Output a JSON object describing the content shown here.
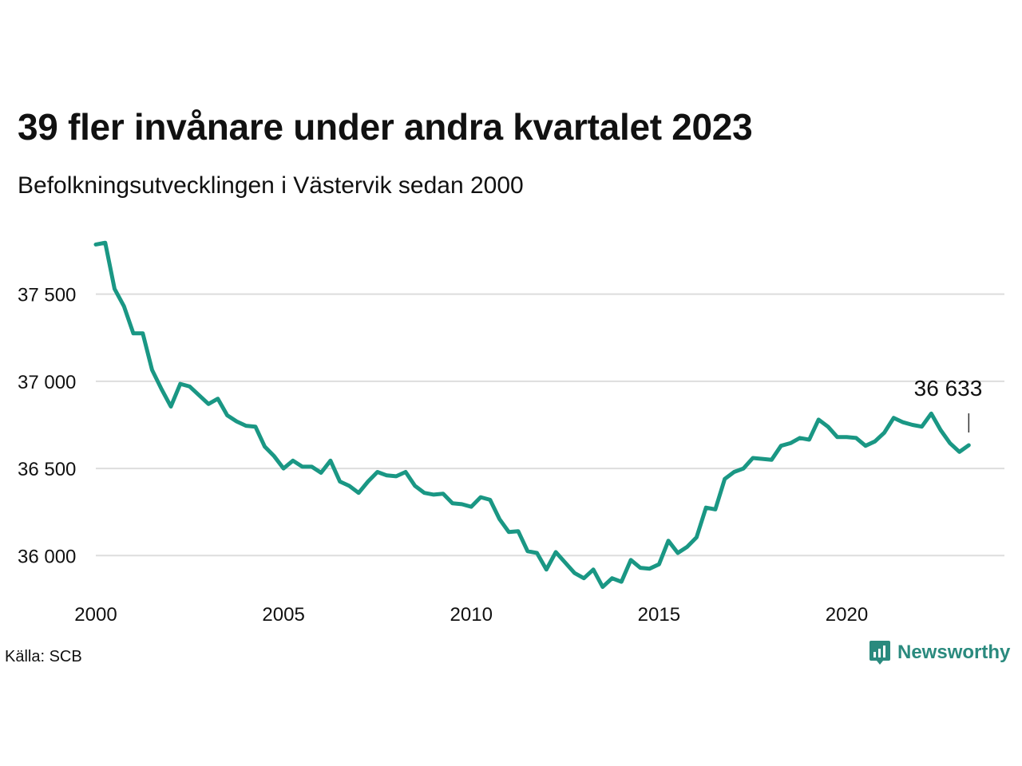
{
  "title": "39 fler invånare under andra kvartalet 2023",
  "subtitle": "Befolkningsutvecklingen i Västervik sedan 2000",
  "source": "Källa: SCB",
  "brand": {
    "name": "Newsworthy",
    "icon": "newsworthy-logo-icon",
    "color": "#2a8a7e"
  },
  "colors": {
    "line": "#1a9784",
    "grid": "#dddddd",
    "text": "#111111"
  },
  "chart_data": {
    "type": "line",
    "title": "39 fler invånare under andra kvartalet 2023",
    "subtitle": "Befolkningsutvecklingen i Västervik sedan 2000",
    "xlabel": "",
    "ylabel": "",
    "xlim": [
      2000,
      2024.2
    ],
    "ylim": [
      35800,
      37860
    ],
    "x_ticks": [
      {
        "value": 2000,
        "label": "2000"
      },
      {
        "value": 2005,
        "label": "2005"
      },
      {
        "value": 2010,
        "label": "2010"
      },
      {
        "value": 2015,
        "label": "2015"
      },
      {
        "value": 2020,
        "label": "2020"
      }
    ],
    "y_ticks": [
      {
        "value": 36000,
        "label": "36 000"
      },
      {
        "value": 36500,
        "label": "36 500"
      },
      {
        "value": 37000,
        "label": "37 000"
      },
      {
        "value": 37500,
        "label": "37 500"
      }
    ],
    "grid": true,
    "legend": "none",
    "annotation": {
      "x": 2023.25,
      "y": 36633,
      "label": "36 633"
    },
    "x": [
      2000,
      2000.25,
      2000.5,
      2000.75,
      2001,
      2001.25,
      2001.5,
      2001.75,
      2002,
      2002.25,
      2002.5,
      2002.75,
      2003,
      2003.25,
      2003.5,
      2003.75,
      2004,
      2004.25,
      2004.5,
      2004.75,
      2005,
      2005.25,
      2005.5,
      2005.75,
      2006,
      2006.25,
      2006.5,
      2006.75,
      2007,
      2007.25,
      2007.5,
      2007.75,
      2008,
      2008.25,
      2008.5,
      2008.75,
      2009,
      2009.25,
      2009.5,
      2009.75,
      2010,
      2010.25,
      2010.5,
      2010.75,
      2011,
      2011.25,
      2011.5,
      2011.75,
      2012,
      2012.25,
      2012.5,
      2012.75,
      2013,
      2013.25,
      2013.5,
      2013.75,
      2014,
      2014.25,
      2014.5,
      2014.75,
      2015,
      2015.25,
      2015.5,
      2015.75,
      2016,
      2016.25,
      2016.5,
      2016.75,
      2017,
      2017.25,
      2017.5,
      2017.75,
      2018,
      2018.25,
      2018.5,
      2018.75,
      2019,
      2019.25,
      2019.5,
      2019.75,
      2020,
      2020.25,
      2020.5,
      2020.75,
      2021,
      2021.25,
      2021.5,
      2021.75,
      2022,
      2022.25,
      2022.5,
      2022.75,
      2023,
      2023.25
    ],
    "series": [
      {
        "values": [
          37785,
          37795,
          37530,
          37430,
          37275,
          37275,
          37065,
          36955,
          36855,
          36985,
          36970,
          36920,
          36870,
          36900,
          36805,
          36770,
          36745,
          36740,
          36625,
          36570,
          36500,
          36545,
          36510,
          36510,
          36475,
          36545,
          36425,
          36400,
          36360,
          36425,
          36480,
          36460,
          36455,
          36480,
          36400,
          36360,
          36350,
          36355,
          36300,
          36295,
          36280,
          36335,
          36320,
          36210,
          36135,
          36140,
          36025,
          36015,
          35920,
          36020,
          35960,
          35900,
          35870,
          35920,
          35820,
          35870,
          35850,
          35975,
          35930,
          35925,
          35950,
          36085,
          36015,
          36050,
          36105,
          36275,
          36265,
          36440,
          36480,
          36500,
          36560,
          36555,
          36550,
          36630,
          36645,
          36675,
          36665,
          36780,
          36740,
          36680,
          36680,
          36675,
          36630,
          36655,
          36705,
          36790,
          36765,
          36750,
          36740,
          36815,
          36720,
          36645,
          36595,
          36633
        ]
      }
    ]
  }
}
